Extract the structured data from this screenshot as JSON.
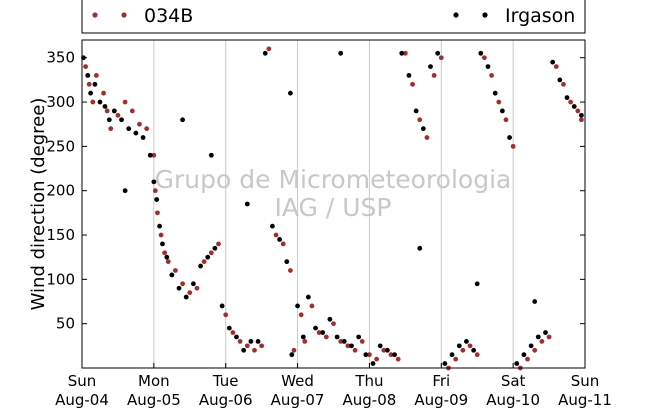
{
  "chart_data": {
    "type": "scatter",
    "title": "",
    "xlabel": "",
    "ylabel": "Wind direction (degree)",
    "ylim": [
      0,
      370
    ],
    "yticks": [
      50,
      100,
      150,
      200,
      250,
      300,
      350
    ],
    "xlim": [
      0,
      7
    ],
    "xticks": [
      {
        "day": "Sun",
        "date": "Aug-04"
      },
      {
        "day": "Mon",
        "date": "Aug-05"
      },
      {
        "day": "Tue",
        "date": "Aug-06"
      },
      {
        "day": "Wed",
        "date": "Aug-07"
      },
      {
        "day": "Thu",
        "date": "Aug-08"
      },
      {
        "day": "Fri",
        "date": "Aug-09"
      },
      {
        "day": "Sat",
        "date": "Aug-10"
      },
      {
        "day": "Sun",
        "date": "Aug-11"
      }
    ],
    "grid": "vertical-days",
    "legend_position": "top",
    "watermark": [
      "Grupo de Micrometeorologia",
      "IAG / USP"
    ],
    "series": [
      {
        "name": "034B",
        "color": "#a03030",
        "x": [
          0.05,
          0.1,
          0.15,
          0.2,
          0.3,
          0.35,
          0.4,
          0.5,
          0.6,
          0.7,
          0.8,
          0.9,
          1.0,
          1.02,
          1.05,
          1.1,
          1.15,
          1.2,
          1.3,
          1.4,
          1.5,
          1.6,
          1.7,
          1.8,
          1.9,
          2.0,
          2.1,
          2.2,
          2.3,
          2.4,
          2.5,
          2.6,
          2.7,
          2.8,
          2.9,
          2.95,
          3.05,
          3.1,
          3.2,
          3.3,
          3.4,
          3.5,
          3.6,
          3.7,
          3.8,
          3.9,
          4.0,
          4.1,
          4.2,
          4.3,
          4.4,
          4.5,
          4.6,
          4.7,
          4.8,
          4.9,
          5.0,
          5.1,
          5.2,
          5.3,
          5.4,
          5.5,
          5.6,
          5.7,
          5.8,
          5.9,
          6.0,
          6.1,
          6.2,
          6.3,
          6.4,
          6.5,
          6.6,
          6.7,
          6.8,
          6.9,
          6.95
        ],
        "y": [
          340,
          320,
          300,
          330,
          310,
          290,
          270,
          285,
          300,
          290,
          275,
          270,
          240,
          200,
          175,
          150,
          130,
          120,
          110,
          95,
          85,
          90,
          120,
          130,
          140,
          60,
          40,
          30,
          25,
          20,
          25,
          360,
          150,
          140,
          110,
          20,
          60,
          30,
          70,
          40,
          35,
          50,
          30,
          25,
          20,
          30,
          15,
          10,
          20,
          15,
          10,
          355,
          320,
          280,
          260,
          330,
          350,
          0,
          10,
          20,
          25,
          15,
          350,
          330,
          300,
          280,
          250,
          0,
          10,
          20,
          30,
          35,
          340,
          320,
          300,
          290,
          280
        ]
      },
      {
        "name": "Irgason",
        "color": "#000000",
        "x": [
          0.02,
          0.08,
          0.12,
          0.18,
          0.25,
          0.32,
          0.38,
          0.45,
          0.55,
          0.65,
          0.75,
          0.85,
          0.95,
          1.0,
          1.04,
          1.08,
          1.12,
          1.18,
          1.25,
          1.35,
          1.45,
          1.55,
          1.65,
          1.75,
          1.85,
          1.95,
          2.05,
          2.15,
          2.25,
          2.35,
          2.45,
          2.55,
          2.65,
          2.75,
          2.85,
          2.92,
          3.0,
          3.08,
          3.15,
          3.25,
          3.35,
          3.45,
          3.55,
          3.65,
          3.75,
          3.85,
          3.95,
          4.05,
          4.15,
          4.25,
          4.35,
          4.45,
          4.55,
          4.65,
          4.75,
          4.85,
          4.95,
          5.05,
          5.15,
          5.25,
          5.35,
          5.45,
          5.55,
          5.65,
          5.75,
          5.85,
          5.95,
          6.05,
          6.15,
          6.25,
          6.35,
          6.45,
          6.55,
          6.65,
          6.75,
          6.85,
          6.95,
          1.4,
          2.3,
          3.6,
          4.7,
          5.5,
          6.3,
          0.6,
          1.8,
          2.9
        ],
        "y": [
          350,
          330,
          310,
          320,
          300,
          295,
          280,
          290,
          280,
          270,
          265,
          260,
          240,
          210,
          190,
          160,
          140,
          125,
          105,
          90,
          80,
          95,
          115,
          125,
          135,
          70,
          45,
          35,
          20,
          30,
          30,
          355,
          160,
          145,
          120,
          15,
          70,
          35,
          80,
          45,
          40,
          55,
          35,
          30,
          25,
          35,
          15,
          5,
          25,
          20,
          15,
          355,
          330,
          290,
          270,
          340,
          355,
          5,
          15,
          25,
          30,
          20,
          355,
          340,
          310,
          290,
          260,
          5,
          15,
          25,
          35,
          40,
          345,
          325,
          305,
          295,
          285,
          280,
          185,
          355,
          135,
          95,
          75,
          200,
          240,
          310
        ]
      }
    ]
  }
}
